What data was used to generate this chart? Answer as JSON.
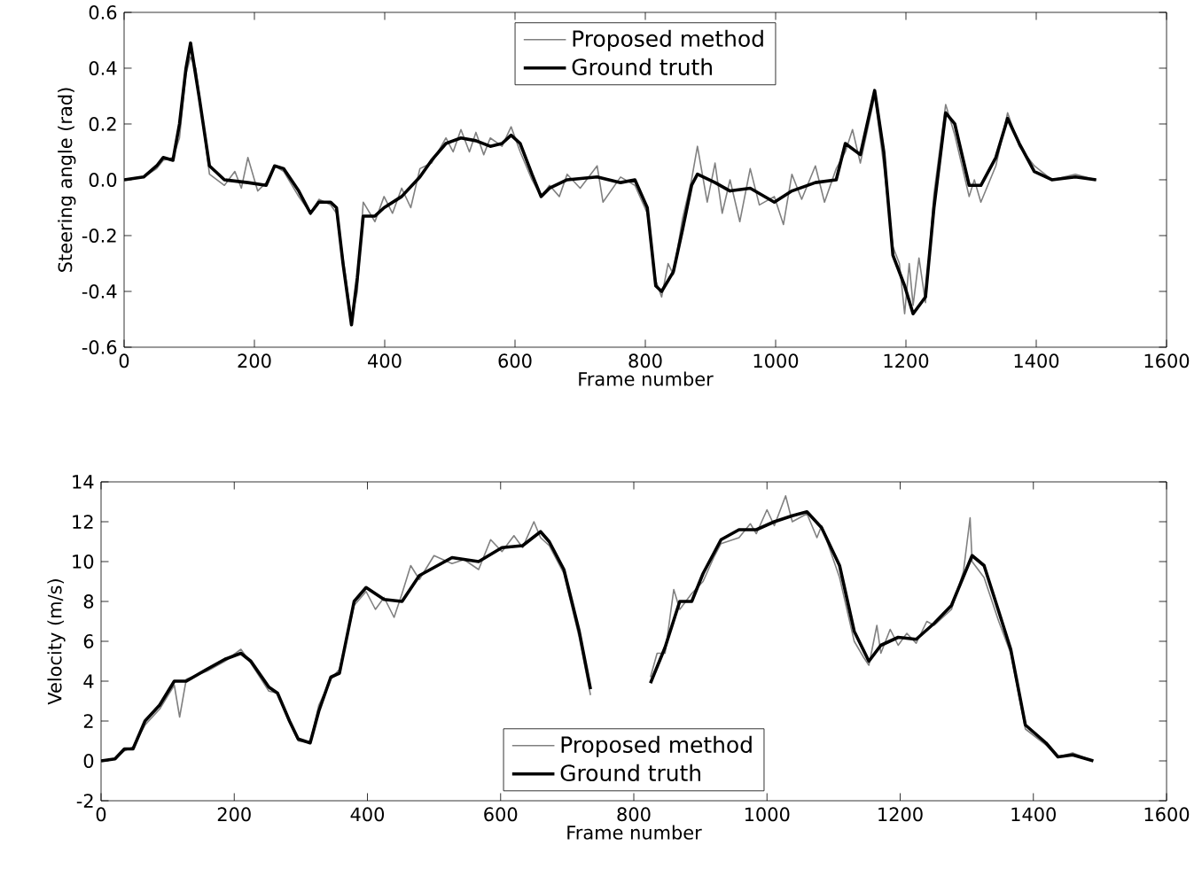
{
  "chart_data": [
    {
      "type": "line",
      "xlabel": "Frame number",
      "ylabel": "Steering angle (rad)",
      "xlim": [
        0,
        1600
      ],
      "ylim": [
        -0.6,
        0.6
      ],
      "xticks": [
        0,
        200,
        400,
        600,
        800,
        1000,
        1200,
        1400,
        1600
      ],
      "yticks": [
        -0.6,
        -0.4,
        -0.2,
        {
          "value": 0,
          "label": "0.0"
        },
        0.2,
        0.4,
        0.6
      ],
      "legend": "top center",
      "series": [
        {
          "name": "Proposed method",
          "color": "#808080",
          "x": [
            0,
            30,
            50,
            60,
            75,
            85,
            95,
            102,
            110,
            131,
            154,
            170,
            180,
            190,
            205,
            218,
            231,
            245,
            268,
            286,
            299,
            317,
            326,
            336,
            349,
            358,
            367,
            385,
            399,
            412,
            426,
            440,
            454,
            472,
            494,
            505,
            517,
            530,
            540,
            552,
            562,
            580,
            594,
            608,
            626,
            640,
            653,
            668,
            680,
            700,
            726,
            735,
            762,
            784,
            803,
            816,
            825,
            835,
            843,
            857,
            871,
            880,
            895,
            907,
            918,
            930,
            945,
            961,
            975,
            998,
            1012,
            1025,
            1040,
            1061,
            1075,
            1093,
            1107,
            1118,
            1130,
            1152,
            1166,
            1180,
            1190,
            1198,
            1205,
            1211,
            1220,
            1230,
            1243,
            1261,
            1275,
            1297,
            1305,
            1315,
            1338,
            1356,
            1374,
            1397,
            1424,
            1460,
            1492
          ],
          "values": [
            0,
            0.01,
            0.04,
            0.07,
            0.08,
            0.15,
            0.38,
            0.44,
            0.4,
            0.02,
            -0.02,
            0.03,
            -0.03,
            0.08,
            -0.04,
            -0.01,
            0.05,
            0.03,
            -0.06,
            -0.12,
            -0.07,
            -0.09,
            -0.12,
            -0.28,
            -0.5,
            -0.4,
            -0.08,
            -0.15,
            -0.06,
            -0.12,
            -0.03,
            -0.1,
            0.04,
            0.06,
            0.15,
            0.1,
            0.18,
            0.1,
            0.17,
            0.09,
            0.15,
            0.12,
            0.19,
            0.1,
            0.0,
            -0.06,
            -0.02,
            -0.06,
            0.02,
            -0.03,
            0.05,
            -0.08,
            0.01,
            -0.02,
            -0.12,
            -0.36,
            -0.42,
            -0.3,
            -0.34,
            -0.14,
            0.0,
            0.12,
            -0.08,
            0.06,
            -0.12,
            0.0,
            -0.15,
            0.04,
            -0.09,
            -0.06,
            -0.16,
            0.02,
            -0.07,
            0.05,
            -0.08,
            0.04,
            0.1,
            0.18,
            0.06,
            0.3,
            0.05,
            -0.24,
            -0.3,
            -0.48,
            -0.3,
            -0.45,
            -0.28,
            -0.44,
            -0.05,
            0.27,
            0.16,
            -0.06,
            0.0,
            -0.08,
            0.05,
            0.24,
            0.12,
            0.05,
            0.0,
            0.02,
            0.0
          ]
        },
        {
          "name": "Ground truth",
          "color": "#000000",
          "x": [
            0,
            30,
            50,
            60,
            75,
            85,
            95,
            102,
            115,
            131,
            154,
            190,
            218,
            231,
            245,
            268,
            286,
            299,
            317,
            326,
            336,
            349,
            358,
            367,
            385,
            399,
            426,
            454,
            472,
            494,
            517,
            540,
            562,
            580,
            594,
            608,
            626,
            640,
            653,
            680,
            726,
            762,
            784,
            803,
            816,
            825,
            843,
            857,
            871,
            880,
            907,
            930,
            961,
            998,
            1025,
            1061,
            1093,
            1107,
            1130,
            1152,
            1166,
            1180,
            1198,
            1211,
            1230,
            1243,
            1261,
            1275,
            1297,
            1315,
            1338,
            1356,
            1374,
            1397,
            1424,
            1460,
            1492
          ],
          "values": [
            0,
            0.01,
            0.05,
            0.08,
            0.07,
            0.2,
            0.4,
            0.49,
            0.3,
            0.05,
            0.0,
            -0.01,
            -0.02,
            0.05,
            0.04,
            -0.04,
            -0.12,
            -0.08,
            -0.08,
            -0.1,
            -0.3,
            -0.52,
            -0.35,
            -0.13,
            -0.13,
            -0.1,
            -0.06,
            0.01,
            0.07,
            0.13,
            0.15,
            0.14,
            0.12,
            0.13,
            0.16,
            0.13,
            0.02,
            -0.06,
            -0.03,
            0.0,
            0.01,
            -0.01,
            0.0,
            -0.1,
            -0.38,
            -0.4,
            -0.33,
            -0.18,
            -0.02,
            0.02,
            -0.01,
            -0.04,
            -0.03,
            -0.08,
            -0.04,
            -0.01,
            0.0,
            0.13,
            0.09,
            0.32,
            0.1,
            -0.27,
            -0.38,
            -0.48,
            -0.42,
            -0.1,
            0.24,
            0.2,
            -0.02,
            -0.02,
            0.08,
            0.22,
            0.13,
            0.03,
            0.0,
            0.01,
            0.0
          ]
        }
      ]
    },
    {
      "type": "line",
      "xlabel": "Frame number",
      "ylabel": "Velocity (m/s)",
      "xlim": [
        0,
        1600
      ],
      "ylim": [
        -2,
        14
      ],
      "xticks": [
        0,
        200,
        400,
        600,
        800,
        1000,
        1200,
        1400,
        1600
      ],
      "yticks": [
        -2,
        0,
        2,
        4,
        6,
        8,
        10,
        12,
        14
      ],
      "legend": "bottom center",
      "series": [
        {
          "name": "Proposed method",
          "color": "#808080",
          "x": [
            0,
            21,
            35,
            48,
            66,
            88,
            110,
            118,
            128,
            159,
            186,
            210,
            225,
            252,
            265,
            283,
            296,
            314,
            327,
            345,
            358,
            380,
            398,
            412,
            425,
            440,
            452,
            465,
            478,
            500,
            527,
            545,
            567,
            585,
            602,
            620,
            633,
            650,
            660,
            673,
            695,
            718,
            735,
            740,
            811,
            825,
            835,
            847,
            860,
            869,
            887,
            904,
            920,
            931,
            958,
            975,
            984,
            1000,
            1011,
            1028,
            1038,
            1060,
            1075,
            1082,
            1109,
            1131,
            1145,
            1153,
            1165,
            1171,
            1185,
            1197,
            1210,
            1224,
            1240,
            1251,
            1277,
            1295,
            1305,
            1308,
            1326,
            1348,
            1366,
            1388,
            1419,
            1437,
            1459,
            1490
          ],
          "values": [
            0,
            0.1,
            0.5,
            0.7,
            1.8,
            2.6,
            3.8,
            2.2,
            4.1,
            4.5,
            5.0,
            5.6,
            4.9,
            3.5,
            3.4,
            1.9,
            1.0,
            0.9,
            2.8,
            4.1,
            4.6,
            7.8,
            8.5,
            7.6,
            8.2,
            7.2,
            8.4,
            9.8,
            9.1,
            10.3,
            9.9,
            10.1,
            9.6,
            11.1,
            10.5,
            11.3,
            10.7,
            12.0,
            11.2,
            10.8,
            9.4,
            6.2,
            3.3,
            null,
            null,
            4.2,
            5.4,
            5.4,
            8.6,
            7.6,
            8.4,
            9.0,
            10.2,
            10.9,
            11.2,
            11.9,
            11.4,
            12.6,
            11.8,
            13.3,
            12.0,
            12.4,
            11.2,
            11.8,
            9.2,
            6.0,
            5.2,
            4.8,
            6.8,
            5.4,
            6.6,
            5.8,
            6.4,
            5.9,
            7.0,
            6.8,
            7.6,
            9.5,
            12.2,
            10.0,
            9.2,
            7.0,
            5.4,
            1.6,
            0.8,
            0.2,
            0.4,
            0.0
          ]
        },
        {
          "name": "Ground truth",
          "color": "#000000",
          "x": [
            0,
            21,
            35,
            48,
            66,
            88,
            110,
            128,
            159,
            186,
            210,
            225,
            252,
            265,
            283,
            296,
            314,
            327,
            345,
            358,
            380,
            398,
            425,
            452,
            478,
            527,
            567,
            602,
            633,
            660,
            673,
            695,
            718,
            735,
            740,
            811,
            825,
            847,
            869,
            887,
            904,
            931,
            958,
            984,
            1011,
            1038,
            1060,
            1082,
            1109,
            1131,
            1153,
            1171,
            1197,
            1224,
            1251,
            1277,
            1308,
            1326,
            1348,
            1366,
            1388,
            1419,
            1437,
            1459,
            1490
          ],
          "values": [
            0,
            0.1,
            0.6,
            0.6,
            2.0,
            2.8,
            4.0,
            4.0,
            4.6,
            5.1,
            5.4,
            5.0,
            3.7,
            3.4,
            2.0,
            1.1,
            0.9,
            2.5,
            4.2,
            4.4,
            8.0,
            8.7,
            8.1,
            8.0,
            9.3,
            10.2,
            10.0,
            10.7,
            10.8,
            11.5,
            11.0,
            9.6,
            6.5,
            3.6,
            null,
            null,
            3.9,
            5.7,
            8.0,
            8.0,
            9.4,
            11.1,
            11.6,
            11.6,
            12.0,
            12.3,
            12.5,
            11.7,
            9.8,
            6.5,
            5.0,
            5.8,
            6.2,
            6.1,
            6.9,
            7.8,
            10.3,
            9.8,
            7.5,
            5.6,
            1.8,
            0.9,
            0.2,
            0.3,
            0.0
          ]
        }
      ]
    }
  ]
}
